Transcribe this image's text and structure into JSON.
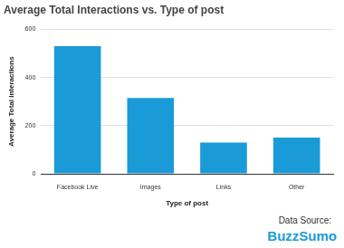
{
  "chart_data": {
    "type": "bar",
    "title": "Average Total Interactions vs. Type of post",
    "x_label": "Type of post",
    "y_label": "Average Total Interactions",
    "categories": [
      "Facebook Live",
      "Images",
      "Links",
      "Other"
    ],
    "values": [
      530,
      315,
      130,
      150
    ],
    "color": "#1a9bd7",
    "ylim": [
      0,
      600
    ],
    "yticks": [
      0,
      200,
      400,
      600
    ],
    "grid": true,
    "annotations": [
      "Data Source:",
      "BuzzSumo"
    ]
  }
}
